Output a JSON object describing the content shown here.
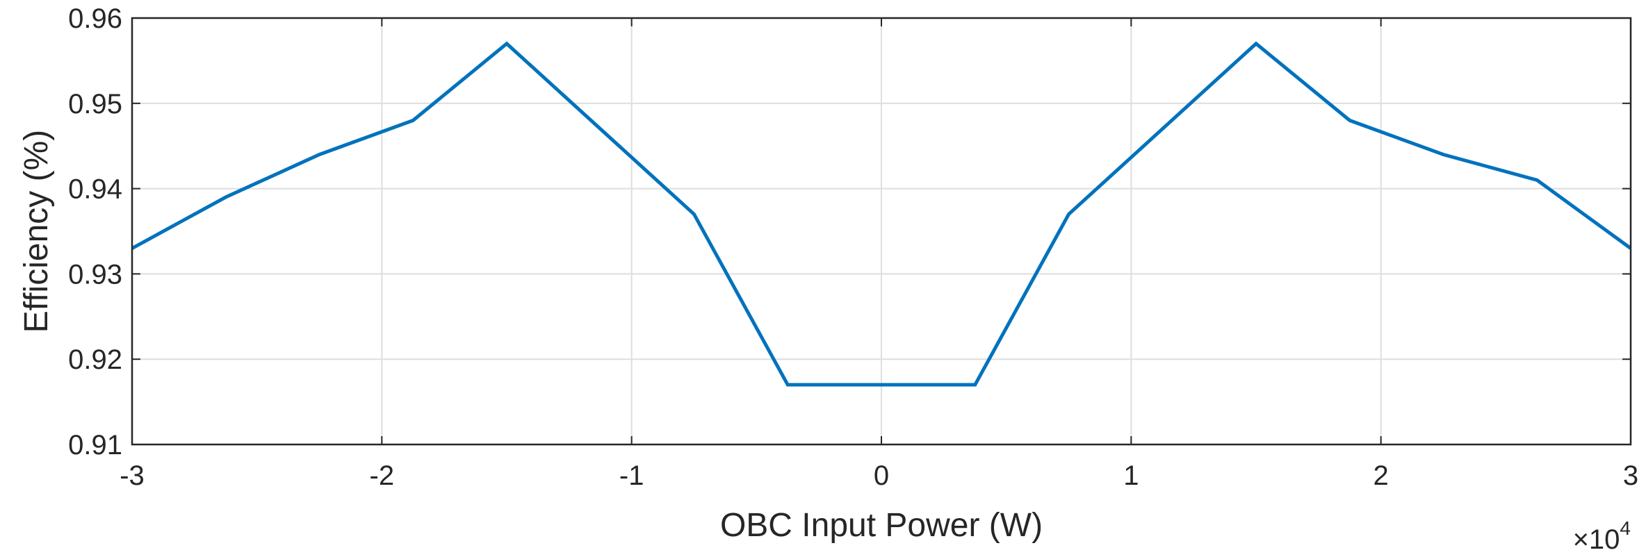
{
  "chart_data": {
    "type": "line",
    "title": "",
    "xlabel": "OBC Input Power (W)",
    "ylabel": "Efficiency (%)",
    "x_exponent_base": "×10",
    "x_exponent_power": "4",
    "xlim": [
      -3,
      3
    ],
    "ylim": [
      0.91,
      0.96
    ],
    "x_ticks": [
      -3,
      -2,
      -1,
      0,
      1,
      2,
      3
    ],
    "x_tick_labels": [
      "-3",
      "-2",
      "-1",
      "0",
      "1",
      "2",
      "3"
    ],
    "y_ticks": [
      0.91,
      0.92,
      0.93,
      0.94,
      0.95,
      0.96
    ],
    "y_tick_labels": [
      "0.91",
      "0.92",
      "0.93",
      "0.94",
      "0.95",
      "0.96"
    ],
    "grid": true,
    "legend": "none",
    "series": [
      {
        "color": "#0072BD",
        "x": [
          -3,
          -2.625,
          -2.25,
          -1.875,
          -1.5,
          -0.75,
          -0.375,
          0.375,
          0.75,
          1.5,
          1.875,
          2.25,
          2.625,
          3
        ],
        "y": [
          0.933,
          0.939,
          0.944,
          0.948,
          0.957,
          0.937,
          0.917,
          0.917,
          0.937,
          0.957,
          0.948,
          0.944,
          0.941,
          0.933
        ]
      }
    ]
  }
}
